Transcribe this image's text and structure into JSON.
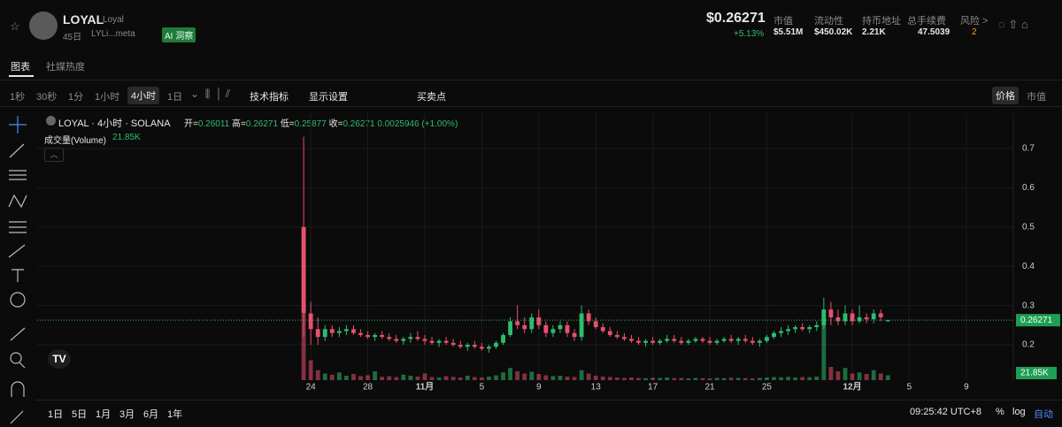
{
  "header": {
    "name": "LOYAL",
    "alias": "Loyal",
    "age": "45日",
    "address": "LYLi...meta",
    "ai": "AI 洞察",
    "price": "$0.26271",
    "change": "+5.13%",
    "stats": [
      {
        "label": "市值",
        "value": "$5.51M"
      },
      {
        "label": "流动性",
        "value": "$450.02K"
      },
      {
        "label": "持币地址",
        "value": "2.21K"
      },
      {
        "label": "总手续费",
        "value": "47.5039"
      }
    ],
    "risk": "风险 >",
    "risk_count": "2"
  },
  "tabs": [
    "图表",
    "社媒热度"
  ],
  "toolbar": {
    "intervals": [
      "1秒",
      "30秒",
      "1分",
      "1小时",
      "4小时",
      "1日"
    ],
    "indicators": "技术指标",
    "display": "显示设置",
    "trades": "买卖点",
    "modes": [
      "价格",
      "市值"
    ]
  },
  "legend": {
    "title": "LOYAL · 4小时 · SOLANA",
    "ohlc": [
      {
        "label": "开=",
        "value": "0.26011"
      },
      {
        "label": "高=",
        "value": "0.26271"
      },
      {
        "label": "低=",
        "value": "0.25877"
      },
      {
        "label": "收=",
        "value": "0.26271"
      }
    ],
    "change": "0.0025946 (+1.00%)",
    "volume_label": "成交量(Volume)",
    "volume_value": "21.85K"
  },
  "footer": {
    "ranges": [
      "1日",
      "5日",
      "1月",
      "3月",
      "6月",
      "1年"
    ],
    "time": "09:25:42 UTC+8",
    "percent": "%",
    "log": "log",
    "auto": "自动"
  },
  "chart_data": {
    "type": "candlestick",
    "up_color": "#2ebd6b",
    "down_color": "#e8506f",
    "x": [
      23.5,
      24,
      24.5,
      25,
      25.5,
      26,
      26.5,
      27,
      27.5,
      28,
      28.5,
      29,
      29.5,
      30,
      30.5,
      31,
      31.5,
      32,
      32.5,
      33,
      33.5,
      34,
      34.5,
      35,
      35.5,
      36,
      36.5,
      37,
      37.5,
      38,
      38.5,
      39,
      39.5,
      40,
      40.5,
      41,
      41.5,
      42,
      42.5,
      43,
      43.5,
      44,
      44.5,
      45,
      45.5,
      46,
      46.5,
      47,
      47.5,
      48,
      48.5,
      49,
      49.5,
      50,
      50.5,
      51,
      51.5,
      52,
      52.5,
      53,
      53.5,
      54,
      54.5,
      55,
      55.5,
      56,
      56.5,
      57,
      57.5,
      58,
      58.5,
      59,
      59.5,
      60,
      60.5,
      61,
      61.5,
      62,
      62.5,
      63,
      63.5,
      64,
      64.5
    ],
    "open": [
      0.5,
      0.28,
      0.24,
      0.22,
      0.24,
      0.23,
      0.235,
      0.24,
      0.23,
      0.225,
      0.22,
      0.225,
      0.22,
      0.215,
      0.21,
      0.215,
      0.22,
      0.215,
      0.21,
      0.205,
      0.21,
      0.205,
      0.2,
      0.195,
      0.2,
      0.195,
      0.19,
      0.195,
      0.205,
      0.225,
      0.26,
      0.25,
      0.24,
      0.27,
      0.25,
      0.23,
      0.24,
      0.25,
      0.23,
      0.22,
      0.28,
      0.26,
      0.245,
      0.235,
      0.225,
      0.22,
      0.215,
      0.21,
      0.205,
      0.21,
      0.205,
      0.21,
      0.215,
      0.21,
      0.205,
      0.21,
      0.215,
      0.21,
      0.205,
      0.21,
      0.215,
      0.21,
      0.215,
      0.21,
      0.205,
      0.21,
      0.22,
      0.23,
      0.235,
      0.24,
      0.245,
      0.24,
      0.245,
      0.25,
      0.29,
      0.27,
      0.26,
      0.28,
      0.26,
      0.27,
      0.265,
      0.28,
      0.26011
    ],
    "high": [
      0.73,
      0.31,
      0.27,
      0.25,
      0.25,
      0.245,
      0.25,
      0.25,
      0.24,
      0.235,
      0.23,
      0.235,
      0.23,
      0.225,
      0.22,
      0.23,
      0.235,
      0.225,
      0.22,
      0.215,
      0.22,
      0.215,
      0.21,
      0.205,
      0.21,
      0.205,
      0.2,
      0.21,
      0.23,
      0.27,
      0.3,
      0.27,
      0.28,
      0.29,
      0.26,
      0.25,
      0.26,
      0.26,
      0.24,
      0.3,
      0.29,
      0.27,
      0.255,
      0.245,
      0.235,
      0.23,
      0.225,
      0.22,
      0.215,
      0.22,
      0.215,
      0.225,
      0.225,
      0.22,
      0.215,
      0.22,
      0.22,
      0.22,
      0.215,
      0.22,
      0.225,
      0.22,
      0.225,
      0.22,
      0.215,
      0.225,
      0.235,
      0.245,
      0.25,
      0.25,
      0.255,
      0.25,
      0.26,
      0.32,
      0.31,
      0.29,
      0.3,
      0.29,
      0.3,
      0.28,
      0.29,
      0.29,
      0.26271
    ],
    "low": [
      0.22,
      0.2,
      0.2,
      0.21,
      0.22,
      0.22,
      0.225,
      0.225,
      0.22,
      0.215,
      0.21,
      0.215,
      0.21,
      0.205,
      0.2,
      0.205,
      0.21,
      0.2,
      0.2,
      0.195,
      0.2,
      0.195,
      0.19,
      0.185,
      0.19,
      0.185,
      0.18,
      0.19,
      0.2,
      0.22,
      0.24,
      0.23,
      0.23,
      0.24,
      0.22,
      0.22,
      0.23,
      0.22,
      0.21,
      0.21,
      0.25,
      0.24,
      0.23,
      0.22,
      0.215,
      0.21,
      0.205,
      0.2,
      0.195,
      0.2,
      0.2,
      0.205,
      0.205,
      0.2,
      0.2,
      0.205,
      0.205,
      0.2,
      0.2,
      0.205,
      0.205,
      0.2,
      0.205,
      0.2,
      0.195,
      0.205,
      0.215,
      0.22,
      0.225,
      0.23,
      0.235,
      0.23,
      0.235,
      0.24,
      0.25,
      0.25,
      0.25,
      0.25,
      0.255,
      0.255,
      0.255,
      0.26,
      0.25877
    ],
    "close": [
      0.28,
      0.24,
      0.22,
      0.24,
      0.23,
      0.235,
      0.24,
      0.23,
      0.225,
      0.22,
      0.225,
      0.22,
      0.215,
      0.21,
      0.215,
      0.22,
      0.215,
      0.21,
      0.205,
      0.21,
      0.205,
      0.2,
      0.195,
      0.2,
      0.195,
      0.19,
      0.195,
      0.205,
      0.225,
      0.26,
      0.25,
      0.24,
      0.27,
      0.25,
      0.23,
      0.24,
      0.25,
      0.23,
      0.22,
      0.28,
      0.26,
      0.245,
      0.235,
      0.225,
      0.22,
      0.215,
      0.21,
      0.205,
      0.21,
      0.205,
      0.21,
      0.215,
      0.21,
      0.205,
      0.21,
      0.215,
      0.21,
      0.205,
      0.21,
      0.215,
      0.21,
      0.215,
      0.21,
      0.205,
      0.21,
      0.22,
      0.23,
      0.235,
      0.24,
      0.245,
      0.24,
      0.245,
      0.25,
      0.29,
      0.27,
      0.26,
      0.28,
      0.26,
      0.27,
      0.265,
      0.28,
      0.27,
      0.26271
    ],
    "volume": [
      300,
      90,
      45,
      30,
      25,
      35,
      20,
      28,
      18,
      22,
      40,
      15,
      18,
      14,
      25,
      20,
      16,
      30,
      14,
      12,
      18,
      15,
      12,
      20,
      14,
      12,
      16,
      22,
      35,
      55,
      40,
      30,
      38,
      28,
      22,
      18,
      20,
      16,
      14,
      45,
      30,
      20,
      16,
      14,
      12,
      10,
      12,
      10,
      9,
      11,
      10,
      12,
      9,
      10,
      8,
      10,
      9,
      8,
      10,
      9,
      11,
      10,
      9,
      8,
      10,
      12,
      14,
      13,
      15,
      12,
      14,
      13,
      16,
      280,
      60,
      40,
      55,
      30,
      35,
      28,
      45,
      30,
      21.85
    ],
    "xlim": [
      4.8,
      73.3
    ],
    "xticks": [
      24,
      28,
      {
        "value": 32,
        "label": "11月"
      },
      {
        "value": 36,
        "label": "5"
      },
      {
        "value": 40,
        "label": "9"
      },
      {
        "value": 44,
        "label": "13"
      },
      {
        "value": 48,
        "label": "17"
      },
      {
        "value": 52,
        "label": "21"
      },
      {
        "value": 56,
        "label": "25"
      },
      {
        "value": 62,
        "label": "12月"
      },
      {
        "value": 66,
        "label": "5"
      },
      {
        "value": 70,
        "label": "9"
      }
    ],
    "ylim": [
      0.11,
      0.79
    ],
    "yticks": [
      0.2,
      0.3,
      0.4,
      0.5,
      0.6,
      0.7
    ],
    "grid": true
  }
}
